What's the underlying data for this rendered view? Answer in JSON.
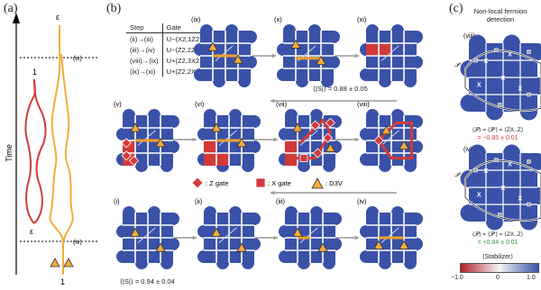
{
  "panels": {
    "a": "(a)",
    "b": "(b)",
    "c": "(c)"
  },
  "panel_a": {
    "time_label": "Time",
    "epsilon": "ε",
    "one": "1",
    "marker_ix": "(ix)",
    "marker_iv": "(iv)"
  },
  "gate_table": {
    "headers": [
      "Step",
      "Gate"
    ],
    "rows": [
      [
        "(ii)→(iii)",
        "U−(X2,1Z2,2)"
      ],
      [
        "(iii)→(iv)",
        "U−(Z2,2Z2,3)"
      ],
      [
        "(viii)→(ix)",
        "U+(Z2,3X2,2)"
      ],
      [
        "(ix)→(xi)",
        "U+(Z2,2X2,1)"
      ]
    ]
  },
  "steps": {
    "i": "(i)",
    "ii": "(ii)",
    "iii": "(iii)",
    "iv": "(iv)",
    "v": "(v)",
    "vi": "(vi)",
    "vii": "(vii)",
    "viii": "(viii)",
    "ix": "(ix)",
    "x": "(x)",
    "xi": "(xi)"
  },
  "stat_top": "⟨|S|⟩ = 0.88 ± 0.05",
  "stat_bottom": "⟨|S|⟩ = 0.94 ± 0.04",
  "legend": {
    "z_gate": ": Z gate",
    "x_gate": ": X gate",
    "d3v": ": D3V"
  },
  "panel_c": {
    "title_line1": "Non-local fermion",
    "title_line2": "detection",
    "viii_label": "(viii)",
    "iv_label": "(iv)",
    "p_label": "𝒫'",
    "x_mark": "X",
    "eq_viii": "⟨𝒫⟩ = ⟨𝒫'⟩ = ⟨ZX..Z⟩",
    "val_viii": "= −0.85 ± 0.01",
    "eq_iv": "⟨𝒫⟩ = ⟨𝒫'⟩ = ⟨ZX..Z⟩",
    "val_iv": "= +0.84 ± 0.01",
    "colorbar_title": "⟨Stabilizer⟩",
    "ticks": [
      "−1.0",
      "0",
      "1.0"
    ]
  },
  "colors": {
    "blue": "#3a51a8",
    "red": "#d23a3a",
    "orange": "#f0a12c",
    "yellow": "#f2ad3a",
    "grey_arrow": "#9a9a9a",
    "green": "#2a9a3a"
  }
}
